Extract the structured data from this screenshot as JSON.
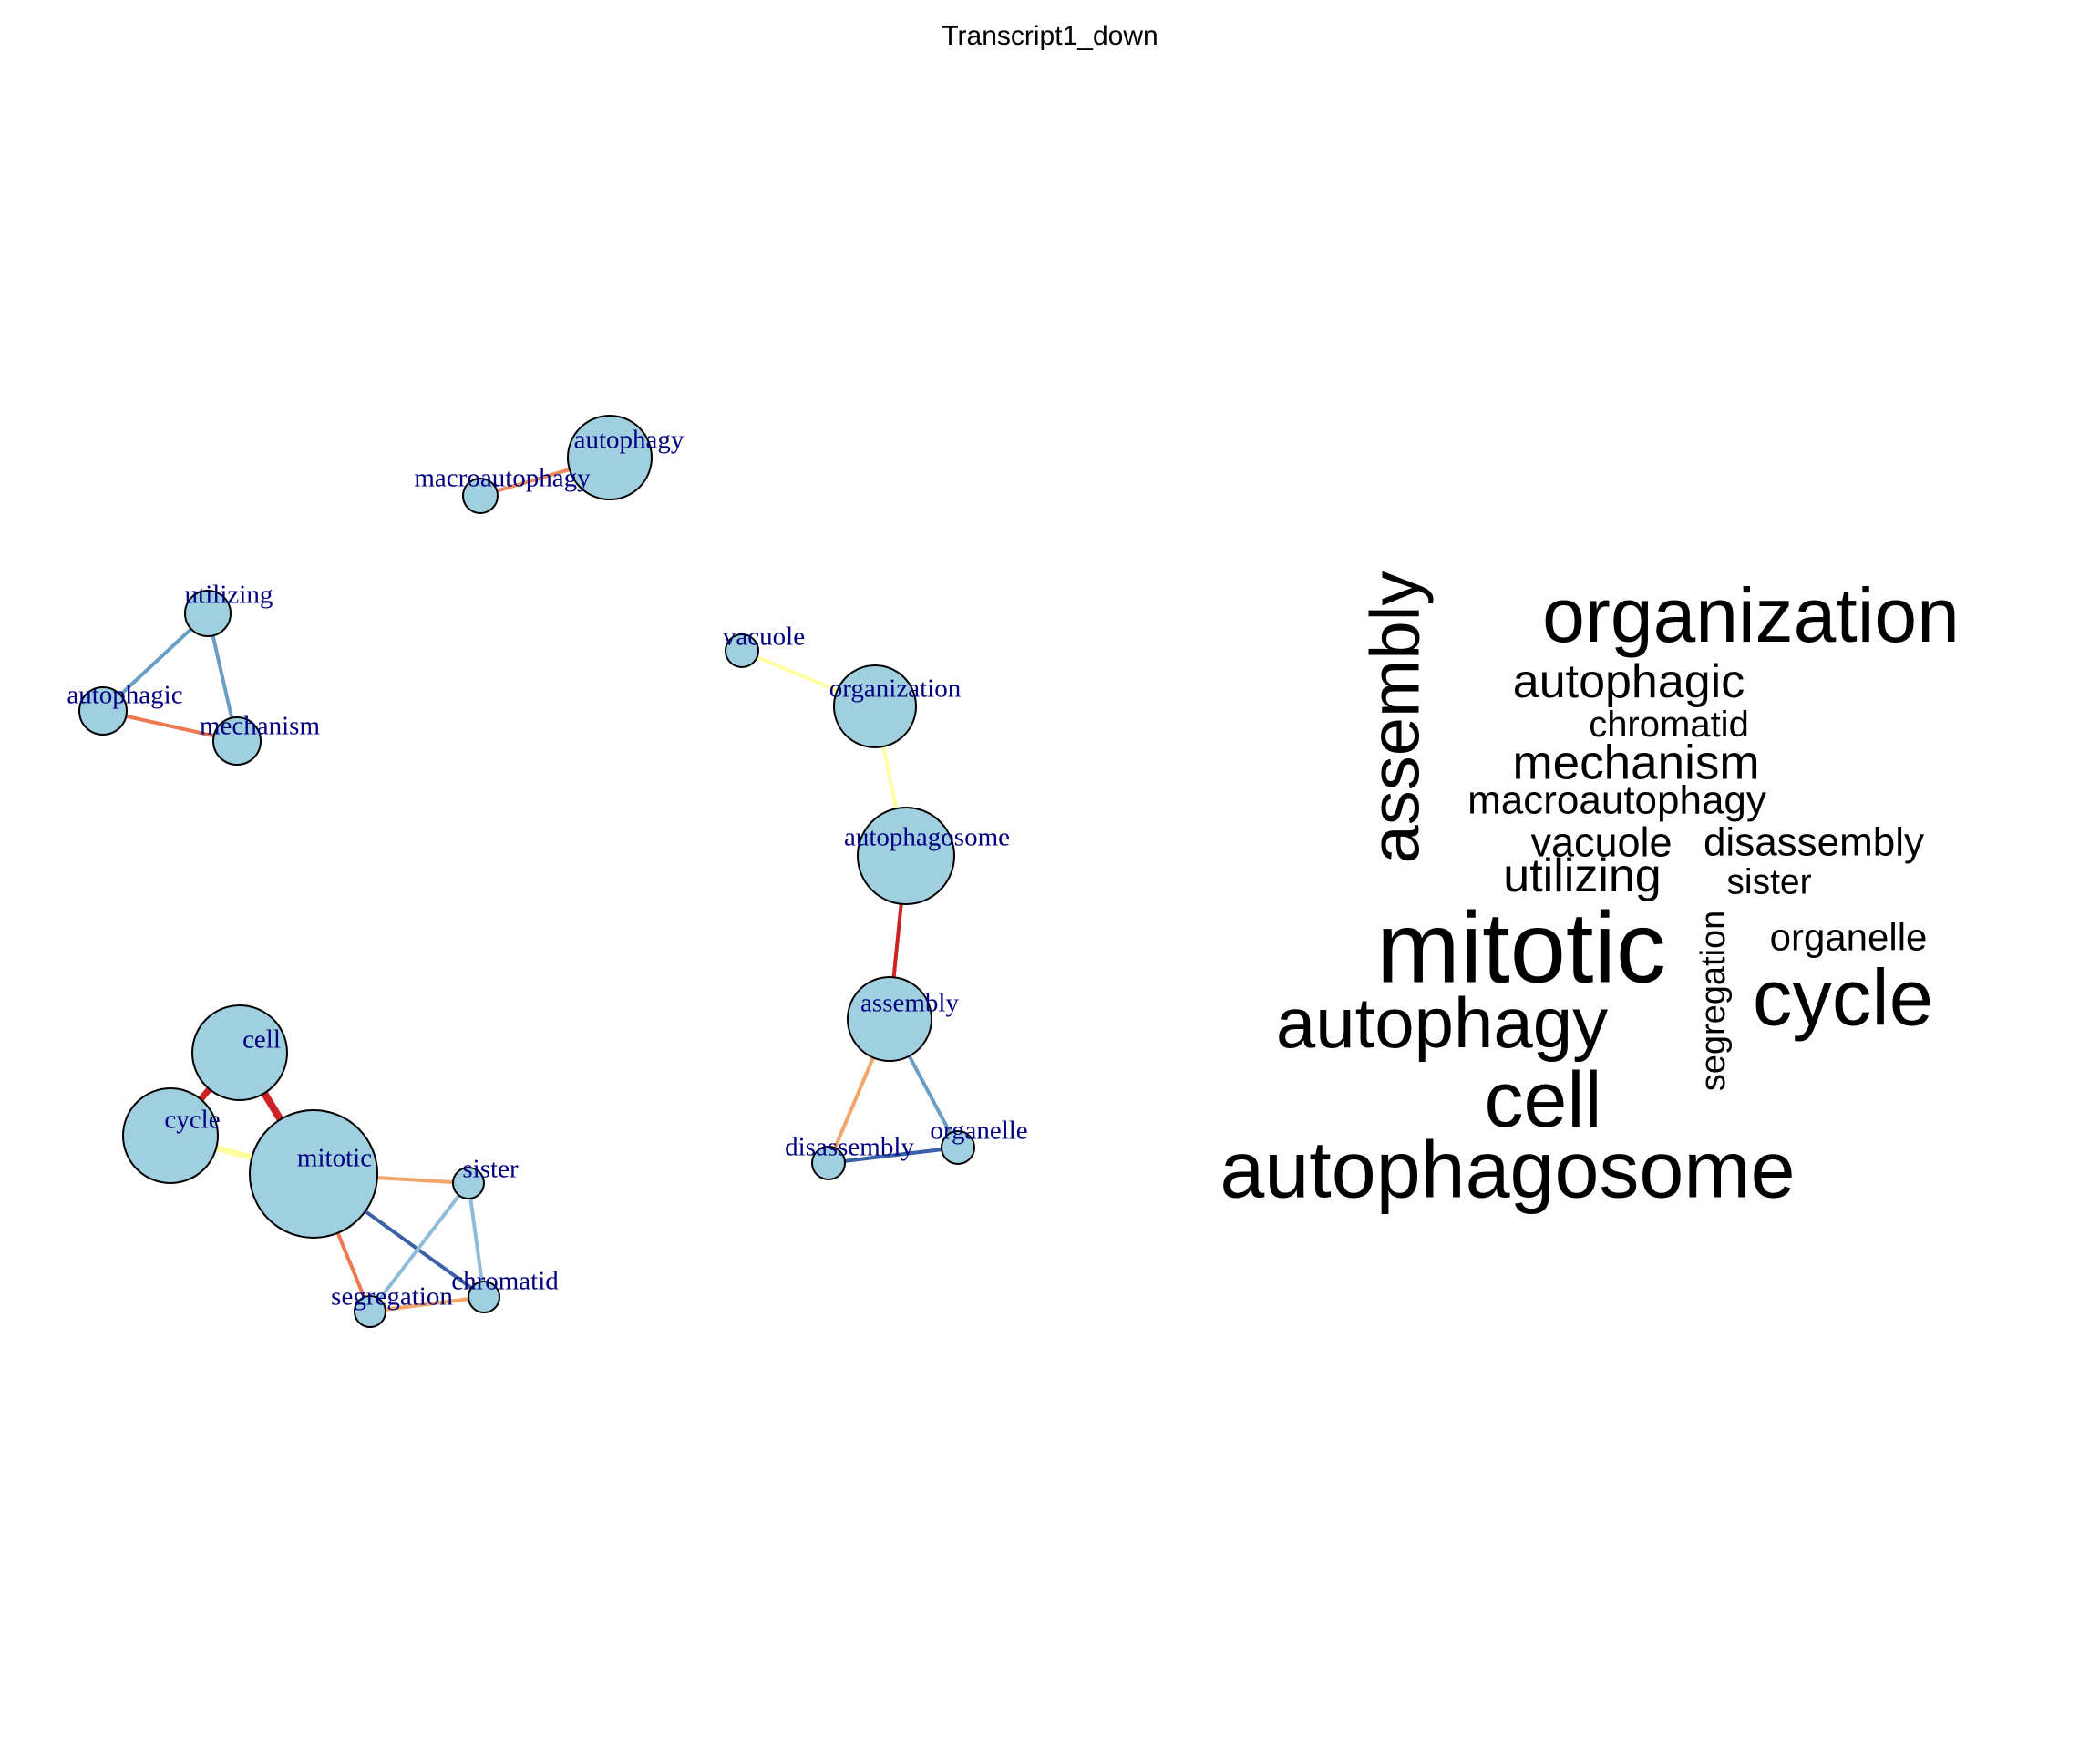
{
  "title": "Transcript1_down",
  "network": {
    "node_fill": "#a0cfdf",
    "label_color": "#000080",
    "nodes": [
      {
        "id": "autophagy",
        "label": "autophagy"
      },
      {
        "id": "macroautophagy",
        "label": "macroautophagy"
      },
      {
        "id": "utilizing",
        "label": "utilizing"
      },
      {
        "id": "autophagic",
        "label": "autophagic"
      },
      {
        "id": "mechanism",
        "label": "mechanism"
      },
      {
        "id": "vacuole",
        "label": "vacuole"
      },
      {
        "id": "organization",
        "label": "organization"
      },
      {
        "id": "autophagosome",
        "label": "autophagosome"
      },
      {
        "id": "assembly",
        "label": "assembly"
      },
      {
        "id": "disassembly",
        "label": "disassembly"
      },
      {
        "id": "organelle",
        "label": "organelle"
      },
      {
        "id": "cell",
        "label": "cell"
      },
      {
        "id": "cycle",
        "label": "cycle"
      },
      {
        "id": "mitotic",
        "label": "mitotic"
      },
      {
        "id": "sister",
        "label": "sister"
      },
      {
        "id": "chromatid",
        "label": "chromatid"
      },
      {
        "id": "segregation",
        "label": "segregation"
      }
    ],
    "edges": [
      {
        "source": "macroautophagy",
        "target": "autophagy",
        "color": "#ef8a62"
      },
      {
        "source": "utilizing",
        "target": "autophagic",
        "color": "#6a9ec5"
      },
      {
        "source": "utilizing",
        "target": "mechanism",
        "color": "#6a9ec5"
      },
      {
        "source": "autophagic",
        "target": "mechanism",
        "color": "#f07850"
      },
      {
        "source": "vacuole",
        "target": "organization",
        "color": "#ffffa0"
      },
      {
        "source": "organization",
        "target": "autophagosome",
        "color": "#ffffa0"
      },
      {
        "source": "autophagosome",
        "target": "assembly",
        "color": "#cc2222"
      },
      {
        "source": "assembly",
        "target": "disassembly",
        "color": "#f4a56a"
      },
      {
        "source": "assembly",
        "target": "organelle",
        "color": "#6a9ec5"
      },
      {
        "source": "disassembly",
        "target": "organelle",
        "color": "#3a60a8"
      },
      {
        "source": "cell",
        "target": "cycle",
        "color": "#cc2222"
      },
      {
        "source": "cell",
        "target": "mitotic",
        "color": "#cc2222"
      },
      {
        "source": "cycle",
        "target": "mitotic",
        "color": "#ffffa0"
      },
      {
        "source": "mitotic",
        "target": "sister",
        "color": "#f4a56a"
      },
      {
        "source": "mitotic",
        "target": "chromatid",
        "color": "#3a60a8"
      },
      {
        "source": "mitotic",
        "target": "segregation",
        "color": "#f07850"
      },
      {
        "source": "sister",
        "target": "chromatid",
        "color": "#8fbcd8"
      },
      {
        "source": "sister",
        "target": "segregation",
        "color": "#8fbcd8"
      },
      {
        "source": "segregation",
        "target": "chromatid",
        "color": "#f4a56a"
      }
    ]
  },
  "wordcloud": {
    "color": "#000000",
    "words": [
      {
        "text": "organization"
      },
      {
        "text": "assembly"
      },
      {
        "text": "autophagic"
      },
      {
        "text": "chromatid"
      },
      {
        "text": "mechanism"
      },
      {
        "text": "macroautophagy"
      },
      {
        "text": "vacuole"
      },
      {
        "text": "disassembly"
      },
      {
        "text": "utilizing"
      },
      {
        "text": "sister"
      },
      {
        "text": "segregation"
      },
      {
        "text": "mitotic"
      },
      {
        "text": "organelle"
      },
      {
        "text": "cycle"
      },
      {
        "text": "autophagy"
      },
      {
        "text": "cell"
      },
      {
        "text": "autophagosome"
      }
    ]
  }
}
